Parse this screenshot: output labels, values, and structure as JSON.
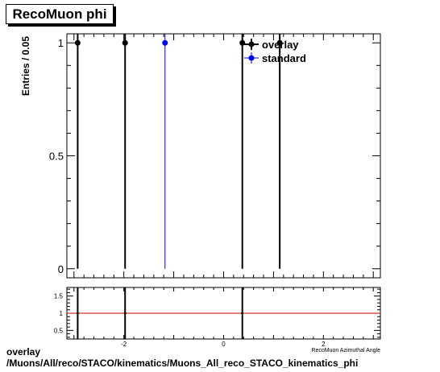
{
  "title": "RecoMuon phi",
  "caption": {
    "line1": "overlay",
    "line2": "/Muons/All/reco/STACO/kinematics/Muons_All_reco_STACO_kinematics_phi"
  },
  "colors": {
    "overlay": "#000000",
    "standard": "#0000ff",
    "ratio_line": "#cc0000"
  },
  "chart_data": [
    {
      "type": "scatter",
      "panel": "main",
      "ylabel": "Entries / 0.05",
      "xlim": [
        -3.14159,
        3.14159
      ],
      "ylim": [
        -0.04,
        1.04
      ],
      "y_ticks": [
        {
          "value": 0,
          "label": "0"
        },
        {
          "value": 0.5,
          "label": "0.5"
        },
        {
          "value": 1,
          "label": "1"
        }
      ],
      "legend": {
        "position": "top-right"
      },
      "series": [
        {
          "name": "overlay",
          "style": "points-with-error-bars",
          "x": [
            -2.925,
            -1.975,
            0.375,
            1.125
          ],
          "y": [
            1,
            1,
            1,
            1
          ],
          "yerr": [
            1,
            1,
            1,
            1
          ]
        },
        {
          "name": "standard",
          "style": "points-with-error-bars",
          "x": [
            -1.175
          ],
          "y": [
            1
          ],
          "yerr": [
            1
          ]
        }
      ]
    },
    {
      "type": "scatter",
      "panel": "ratio",
      "xlabel": "RecoMuon Azimuthal Angle",
      "xlim": [
        -3.14159,
        3.14159
      ],
      "ylim": [
        0.25,
        1.75
      ],
      "x_ticks": [
        {
          "value": -2,
          "label": "-2"
        },
        {
          "value": 0,
          "label": "0"
        },
        {
          "value": 2,
          "label": "2"
        }
      ],
      "y_ticks": [
        {
          "value": 0.5,
          "label": "0.5"
        },
        {
          "value": 1,
          "label": "1"
        },
        {
          "value": 1.5,
          "label": "1.5"
        }
      ],
      "reference_line": 1,
      "series": [
        {
          "style": "points-with-error-bars",
          "x": [
            -2.925,
            -1.975,
            0.375
          ],
          "y": [
            1,
            1,
            1
          ],
          "yerr": [
            1,
            1,
            1
          ]
        }
      ]
    }
  ]
}
